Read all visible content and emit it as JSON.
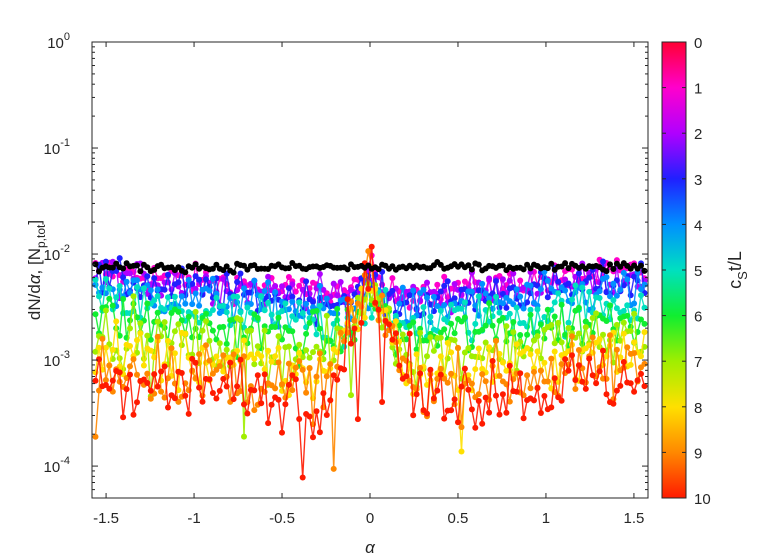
{
  "chart_data": {
    "type": "scatter",
    "xlabel": "α",
    "ylabel": "dN/dα, [N_p,tot]",
    "yscale": "log",
    "xlim": [
      -1.58,
      1.58
    ],
    "ylim": [
      5e-05,
      1
    ],
    "x_ticks": [
      {
        "value": -1.5,
        "label": "-1.5"
      },
      {
        "value": -1.0,
        "label": "-1"
      },
      {
        "value": -0.5,
        "label": "-0.5"
      },
      {
        "value": 0.0,
        "label": "0"
      },
      {
        "value": 0.5,
        "label": "0.5"
      },
      {
        "value": 1.0,
        "label": "1"
      },
      {
        "value": 1.5,
        "label": "1.5"
      }
    ],
    "y_ticks": [
      {
        "value": 0.0001,
        "mantissa": "10",
        "exponent": "-4"
      },
      {
        "value": 0.001,
        "mantissa": "10",
        "exponent": "-3"
      },
      {
        "value": 0.01,
        "mantissa": "10",
        "exponent": "-2"
      },
      {
        "value": 0.1,
        "mantissa": "10",
        "exponent": "-1"
      },
      {
        "value": 1,
        "mantissa": "10",
        "exponent": "0"
      }
    ],
    "colorbar": {
      "label": "c_S t/L",
      "range": [
        0,
        10
      ],
      "ticks": [
        "0",
        "1",
        "2",
        "3",
        "4",
        "5",
        "6",
        "7",
        "8",
        "9",
        "10"
      ],
      "colormap": [
        "#ff0033",
        "#ff00cc",
        "#b000ff",
        "#2020ff",
        "#0090ff",
        "#00e0c0",
        "#10ee30",
        "#a0ee00",
        "#ffe000",
        "#ff8800",
        "#ff1a00"
      ]
    },
    "series_description": "Distributions at times c_S t/L = 0..10; envelope at each time",
    "series": [
      {
        "t": 0,
        "color": "#000000",
        "edge": 0.0075,
        "center": 0.0075,
        "width": 0.6
      },
      {
        "t": 1,
        "color": "#ff00cc",
        "edge": 0.007,
        "center": 0.007,
        "width": 0.6
      },
      {
        "t": 2,
        "color": "#b000ff",
        "edge": 0.0065,
        "center": 0.0062,
        "width": 0.6
      },
      {
        "t": 3,
        "color": "#2020ff",
        "edge": 0.0058,
        "center": 0.0055,
        "width": 0.6
      },
      {
        "t": 4,
        "color": "#0090ff",
        "edge": 0.0048,
        "center": 0.0045,
        "width": 0.6
      },
      {
        "t": 5,
        "color": "#00e0c0",
        "edge": 0.0036,
        "center": 0.004,
        "width": 0.5
      },
      {
        "t": 6,
        "color": "#10ee30",
        "edge": 0.0026,
        "center": 0.0045,
        "width": 0.45
      },
      {
        "t": 7,
        "color": "#a0ee00",
        "edge": 0.0018,
        "center": 0.005,
        "width": 0.4
      },
      {
        "t": 8,
        "color": "#ffe000",
        "edge": 0.0012,
        "center": 0.0055,
        "width": 0.35
      },
      {
        "t": 9,
        "color": "#ff8800",
        "edge": 0.0009,
        "center": 0.0058,
        "width": 0.3
      },
      {
        "t": 10,
        "color": "#ff1a00",
        "edge": 0.0007,
        "center": 0.006,
        "width": 0.28
      }
    ]
  }
}
